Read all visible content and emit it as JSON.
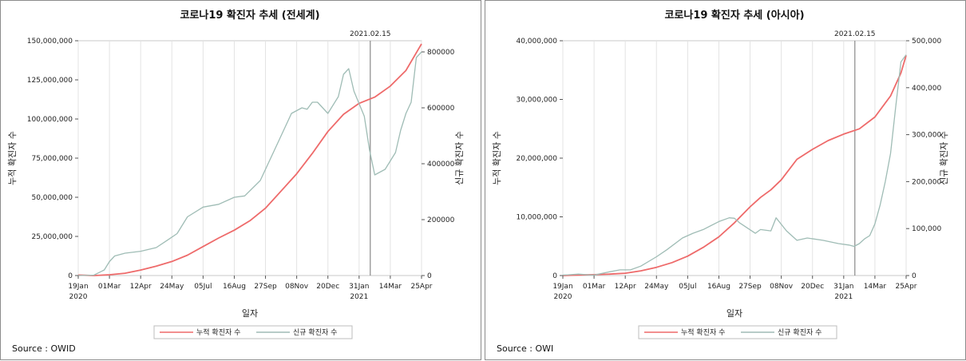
{
  "chart_data": [
    {
      "type": "line",
      "title": "코로나19 확진자 추세 (전세계)",
      "xlabel": "일자",
      "ylabel_left": "누적 확진자 수",
      "ylabel_right": "신규 확진자 수",
      "x_tick_labels": [
        "19Jan",
        "01Mar",
        "12Apr",
        "24May",
        "05Jul",
        "16Aug",
        "27Sep",
        "08Nov",
        "20Dec",
        "31Jan",
        "14Mar",
        "25Apr"
      ],
      "x_year_labels": [
        {
          "at": "19Jan",
          "label": "2020"
        },
        {
          "at": "31Jan",
          "label": "2021"
        }
      ],
      "reference_line": {
        "x": 393,
        "label": "2021.02.15"
      },
      "x_range_days": [
        0,
        462
      ],
      "ylim_left": [
        0,
        150000000
      ],
      "yticks_left": [
        "0",
        "25,000,000",
        "50,000,000",
        "75,000,000",
        "100,000,000",
        "125,000,000",
        "150,000,000"
      ],
      "ylim_right": [
        0,
        840000
      ],
      "yticks_right": [
        "0",
        "200000",
        "400000",
        "600000",
        "800000"
      ],
      "legend_position": "bottom",
      "series": [
        {
          "name": "누적 확진자 수",
          "axis": "left",
          "color": "#ee6a6a",
          "x": [
            0,
            21,
            42,
            63,
            84,
            105,
            126,
            147,
            168,
            189,
            210,
            231,
            252,
            273,
            294,
            315,
            336,
            357,
            378,
            399,
            420,
            441,
            462
          ],
          "y": [
            300000,
            0,
            500000,
            1500000,
            3500000,
            6000000,
            9000000,
            13000000,
            18500000,
            24000000,
            29000000,
            35000000,
            43000000,
            54000000,
            65000000,
            78000000,
            92000000,
            103000000,
            110000000,
            114000000,
            121000000,
            131000000,
            148000000
          ]
        },
        {
          "name": "신규 확진자 수",
          "axis": "right",
          "color": "#9fbcb5",
          "x": [
            0,
            21,
            35,
            42,
            49,
            63,
            84,
            105,
            119,
            133,
            147,
            168,
            189,
            210,
            224,
            245,
            266,
            287,
            301,
            308,
            315,
            322,
            336,
            350,
            357,
            364,
            371,
            385,
            392,
            399,
            413,
            427,
            434,
            441,
            448,
            455,
            462
          ],
          "y": [
            0,
            1500,
            20000,
            50000,
            70000,
            80000,
            87000,
            100000,
            125000,
            150000,
            210000,
            245000,
            255000,
            280000,
            285000,
            340000,
            460000,
            580000,
            600000,
            595000,
            620000,
            620000,
            580000,
            640000,
            720000,
            740000,
            660000,
            570000,
            450000,
            360000,
            380000,
            440000,
            520000,
            580000,
            620000,
            780000,
            800000
          ]
        }
      ]
    },
    {
      "type": "line",
      "title": "코로나19 확진자 추세 (아시아)",
      "xlabel": "일자",
      "ylabel_left": "누적 확진자 수",
      "ylabel_right": "신규 확진자 수",
      "x_tick_labels": [
        "19Jan",
        "01Mar",
        "12Apr",
        "24May",
        "05Jul",
        "16Aug",
        "27Sep",
        "08Nov",
        "20Dec",
        "31Jan",
        "14Mar",
        "25Apr"
      ],
      "x_year_labels": [
        {
          "at": "19Jan",
          "label": "2020"
        },
        {
          "at": "31Jan",
          "label": "2021"
        }
      ],
      "reference_line": {
        "x": 393,
        "label": "2021.02.15"
      },
      "x_range_days": [
        0,
        462
      ],
      "ylim_left": [
        0,
        40000000
      ],
      "yticks_left": [
        "0",
        "10,000,000",
        "20,000,000",
        "30,000,000",
        "40,000,000"
      ],
      "ylim_right": [
        0,
        500000
      ],
      "yticks_right": [
        "0",
        "100,000",
        "200,000",
        "300,000",
        "400,000",
        "500,000"
      ],
      "legend_position": "bottom",
      "series": [
        {
          "name": "누적 확진자 수",
          "axis": "left",
          "color": "#ee6a6a",
          "x": [
            0,
            21,
            42,
            63,
            84,
            105,
            126,
            147,
            168,
            189,
            210,
            231,
            252,
            266,
            280,
            294,
            315,
            336,
            357,
            378,
            399,
            420,
            441,
            455,
            462
          ],
          "y": [
            0,
            100000,
            150000,
            250000,
            400000,
            800000,
            1400000,
            2200000,
            3300000,
            4800000,
            6600000,
            9000000,
            11700000,
            13300000,
            14600000,
            16300000,
            19800000,
            21500000,
            23000000,
            24100000,
            25000000,
            27000000,
            30600000,
            34500000,
            37500000
          ]
        },
        {
          "name": "신규 확진자 수",
          "axis": "right",
          "color": "#9fbcb5",
          "x": [
            0,
            7,
            21,
            35,
            42,
            63,
            77,
            91,
            105,
            126,
            140,
            161,
            175,
            189,
            210,
            224,
            231,
            238,
            259,
            266,
            280,
            287,
            301,
            315,
            329,
            350,
            371,
            385,
            392,
            399,
            406,
            413,
            420,
            427,
            434,
            441,
            448,
            455,
            462
          ],
          "y": [
            1000,
            1500,
            3000,
            1500,
            1000,
            8000,
            12000,
            12000,
            20000,
            40000,
            55000,
            80000,
            90000,
            98000,
            115000,
            123000,
            122000,
            112000,
            90000,
            98000,
            95000,
            123000,
            95000,
            75000,
            80000,
            75000,
            68000,
            65000,
            62000,
            68000,
            78000,
            85000,
            110000,
            150000,
            200000,
            260000,
            360000,
            455000,
            470000
          ]
        }
      ]
    }
  ],
  "sources": [
    "Source : OWID",
    "Source : OWI"
  ]
}
